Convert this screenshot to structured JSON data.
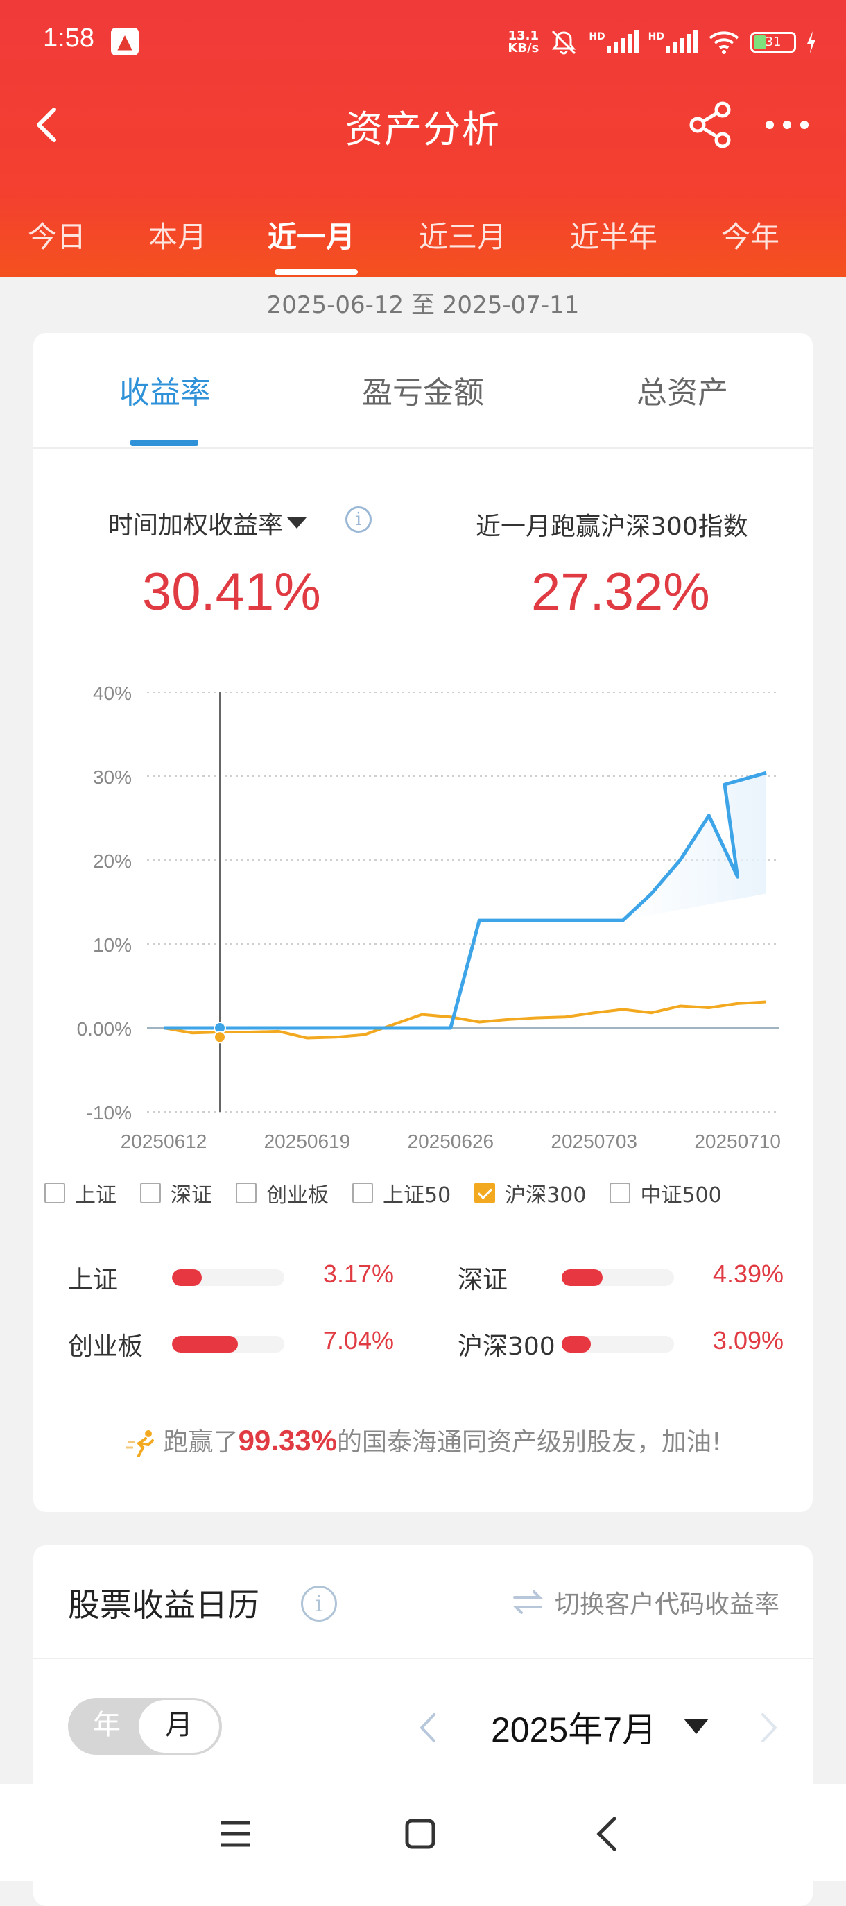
{
  "status_bar": {
    "time": "1:58",
    "app_badge": "▲",
    "net_speed_top": "13.1",
    "net_speed_bottom": "KB/s",
    "hd1": "HD",
    "hd2": "HD",
    "battery": "31"
  },
  "nav": {
    "title": "资产分析"
  },
  "period_tabs": [
    "今日",
    "本月",
    "近一月",
    "近三月",
    "近半年",
    "今年"
  ],
  "period_active": "近一月",
  "date_range": "2025-06-12 至 2025-07-11",
  "metric_tabs": [
    "收益率",
    "盈亏金额",
    "总资产"
  ],
  "metric_active": "收益率",
  "metrics": {
    "left_label": "时间加权收益率",
    "left_value": "30.41%",
    "right_label": "近一月跑赢沪深300指数",
    "right_value": "27.32%"
  },
  "chart_data": {
    "type": "line",
    "title": "",
    "xlabel": "",
    "ylabel": "",
    "x_tick_labels": [
      "20250612",
      "20250619",
      "20250626",
      "20250703",
      "20250710"
    ],
    "y_tick_labels": [
      "40%",
      "30%",
      "20%",
      "10%",
      "0.00%",
      "-10%"
    ],
    "ylim": [
      -10,
      40
    ],
    "grid": true,
    "series": [
      {
        "color": "#3da4e8",
        "points": [
          [
            "20250612",
            0
          ],
          [
            "20250613",
            0
          ],
          [
            "20250616",
            0
          ],
          [
            "20250617",
            0
          ],
          [
            "20250618",
            0
          ],
          [
            "20250619",
            0
          ],
          [
            "20250620",
            0
          ],
          [
            "20250623",
            0
          ],
          [
            "20250624",
            0
          ],
          [
            "20250625",
            0
          ],
          [
            "20250626",
            0
          ],
          [
            "20250627",
            12.8
          ],
          [
            "20250630",
            12.8
          ],
          [
            "20250701",
            12.8
          ],
          [
            "20250702",
            12.8
          ],
          [
            "20250703",
            12.8
          ],
          [
            "20250704",
            12.8
          ],
          [
            "20250707",
            16
          ],
          [
            "20250708",
            20
          ],
          [
            "20250709",
            25.3
          ],
          [
            "20250710",
            18
          ],
          [
            "20250710b",
            29
          ],
          [
            "20250711",
            30.4
          ]
        ]
      },
      {
        "name": "沪深300",
        "color": "#f3a91f",
        "points": [
          [
            "20250612",
            0
          ],
          [
            "20250613",
            -0.6
          ],
          [
            "20250616",
            -0.5
          ],
          [
            "20250617",
            -0.5
          ],
          [
            "20250618",
            -0.4
          ],
          [
            "20250619",
            -1.2
          ],
          [
            "20250620",
            -1.1
          ],
          [
            "20250623",
            -0.8
          ],
          [
            "20250624",
            0.4
          ],
          [
            "20250625",
            1.6
          ],
          [
            "20250626",
            1.3
          ],
          [
            "20250627",
            0.7
          ],
          [
            "20250630",
            1.0
          ],
          [
            "20250701",
            1.2
          ],
          [
            "20250702",
            1.3
          ],
          [
            "20250703",
            1.8
          ],
          [
            "20250704",
            2.2
          ],
          [
            "20250707",
            1.8
          ],
          [
            "20250708",
            2.6
          ],
          [
            "20250709",
            2.4
          ],
          [
            "20250710",
            2.9
          ],
          [
            "20250711",
            3.1
          ]
        ]
      }
    ],
    "cursor_x": "20250613"
  },
  "legend": [
    {
      "label": "上证",
      "checked": false
    },
    {
      "label": "深证",
      "checked": false
    },
    {
      "label": "创业板",
      "checked": false
    },
    {
      "label": "上证50",
      "checked": false
    },
    {
      "label": "沪深300",
      "checked": true
    },
    {
      "label": "中证500",
      "checked": false
    }
  ],
  "indices": [
    {
      "name": "上证",
      "value": "3.17%",
      "level": 3.17
    },
    {
      "name": "深证",
      "value": "4.39%",
      "level": 4.39
    },
    {
      "name": "创业板",
      "value": "7.04%",
      "level": 7.04
    },
    {
      "name": "沪深300",
      "value": "3.09%",
      "level": 3.09
    }
  ],
  "beat": {
    "prefix": "跑赢了",
    "percent": "99.33%",
    "suffix": "的国泰海通同资产级别股友，加油!"
  },
  "calendar": {
    "title": "股票收益日历",
    "switch_label": "切换客户代码收益率",
    "seg_year": "年",
    "seg_month": "月",
    "month": "2025年7月"
  },
  "colors": {
    "header_red": "#f03a3a",
    "accent_blue": "#2f92d8",
    "value_red": "#e03a42",
    "hs300_orange": "#f3a91f"
  }
}
